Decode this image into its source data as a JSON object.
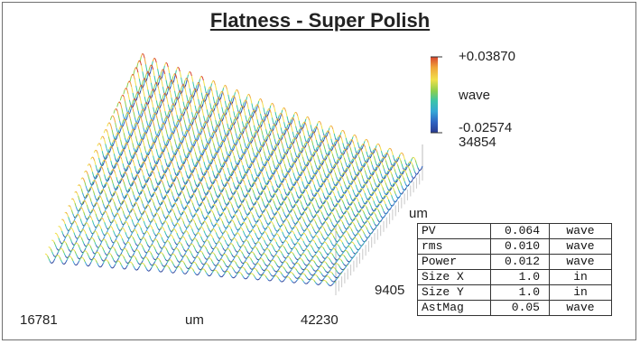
{
  "chart_data": {
    "type": "surface3d",
    "title": "Flatness - Super Polish",
    "x_axis": {
      "label": "um",
      "min": 16781,
      "max": 42230
    },
    "y_axis": {
      "label": "um",
      "max": 9405
    },
    "colorbar": {
      "max": "+0.03870",
      "unit": "wave",
      "min": "-0.02574",
      "extra": "34854"
    },
    "colors": [
      "#2a3a8e",
      "#2f64c2",
      "#35a7d6",
      "#3cc4a8",
      "#8ccf4e",
      "#f1e04a",
      "#f0a53a",
      "#d8452e"
    ],
    "surface": {
      "profiles": 30,
      "ridges": 24,
      "amplitude_min": -0.02574,
      "amplitude_max": 0.0387
    },
    "stats": [
      {
        "name": "PV",
        "value": "0.064",
        "unit": "wave"
      },
      {
        "name": "rms",
        "value": "0.010",
        "unit": "wave"
      },
      {
        "name": "Power",
        "value": "0.012",
        "unit": "wave"
      },
      {
        "name": "Size X",
        "value": "1.0",
        "unit": "in"
      },
      {
        "name": "Size Y",
        "value": "1.0",
        "unit": "in"
      },
      {
        "name": "AstMag",
        "value": "0.05",
        "unit": "wave"
      }
    ]
  }
}
